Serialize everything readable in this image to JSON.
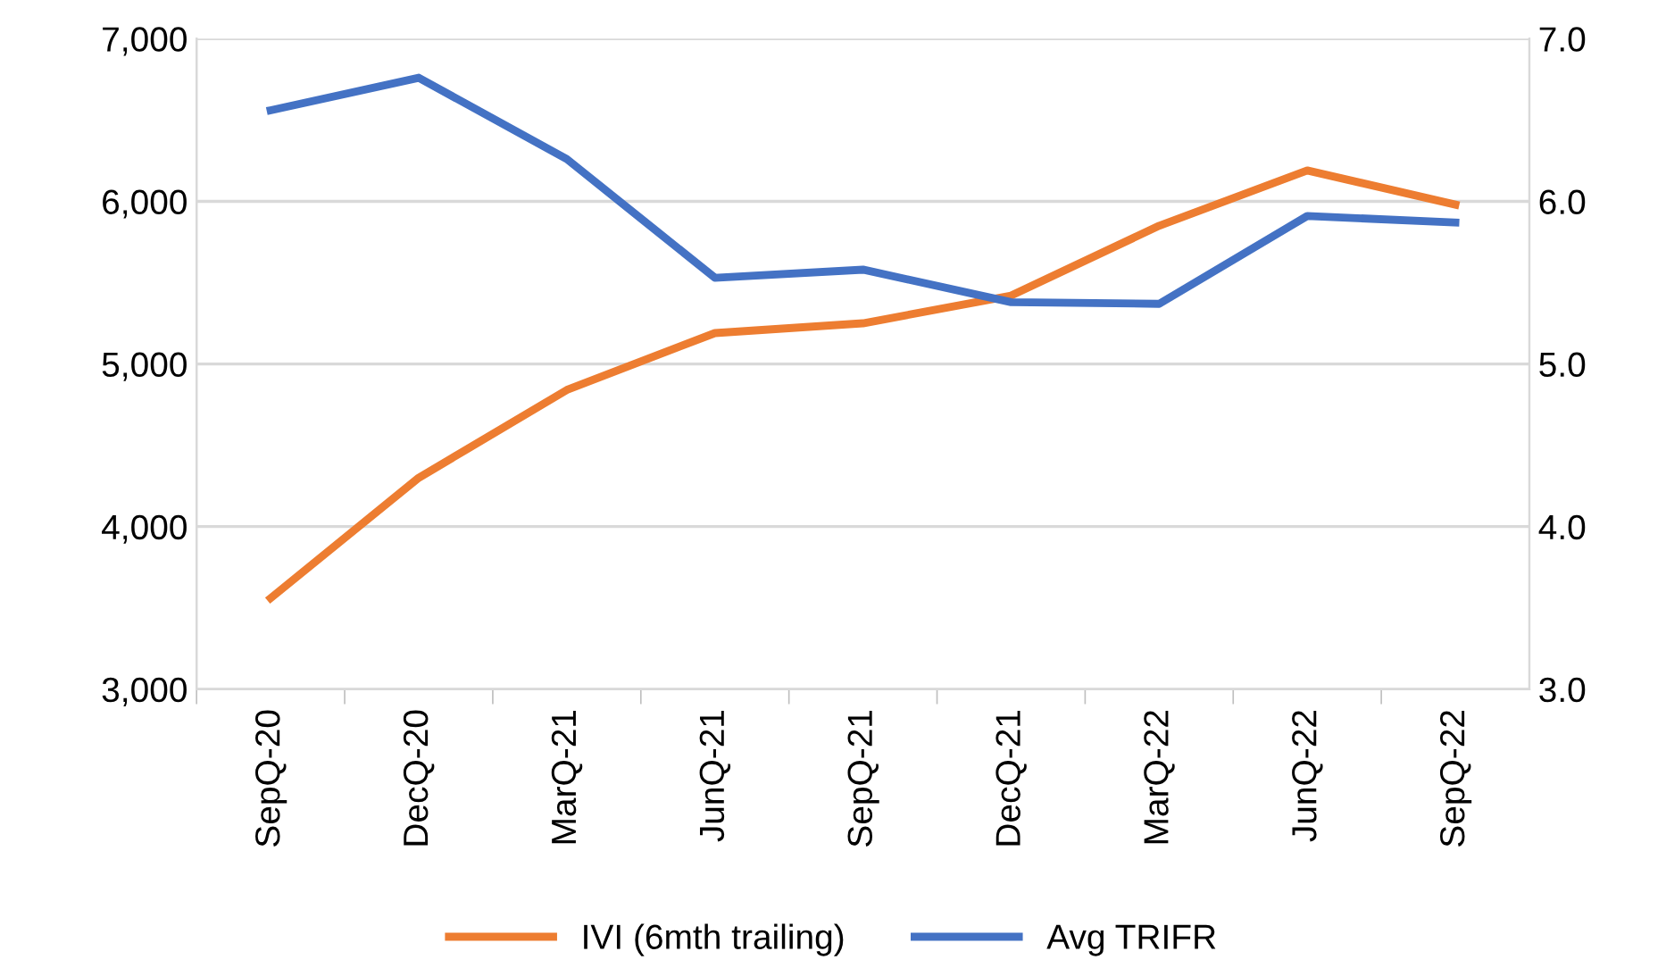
{
  "chart_data": {
    "type": "line",
    "categories": [
      "SepQ-20",
      "DecQ-20",
      "MarQ-21",
      "JunQ-21",
      "SepQ-21",
      "DecQ-21",
      "MarQ-22",
      "JunQ-22",
      "SepQ-22"
    ],
    "series": [
      {
        "name": "IVI (6mth trailing)",
        "color": "#ed7d31",
        "values": [
          3560,
          4300,
          4840,
          5190,
          5250,
          5420,
          5850,
          6190,
          5980
        ]
      },
      {
        "name": "Avg TRIFR",
        "color": "#4472c4",
        "axis": "y2",
        "values": [
          6.56,
          6.76,
          6.26,
          5.53,
          5.58,
          5.38,
          5.37,
          5.91,
          5.87
        ]
      }
    ],
    "ylim": [
      3000,
      7000
    ],
    "yticks": [
      {
        "value": 3000,
        "label": "3,000"
      },
      {
        "value": 4000,
        "label": "4,000"
      },
      {
        "value": 5000,
        "label": "5,000"
      },
      {
        "value": 6000,
        "label": "6,000"
      },
      {
        "value": 7000,
        "label": "7,000"
      }
    ],
    "y2lim": [
      3.0,
      7.0
    ],
    "y2ticks": [
      {
        "value": 3.0,
        "label": "3.0"
      },
      {
        "value": 4.0,
        "label": "4.0"
      },
      {
        "value": 5.0,
        "label": "5.0"
      },
      {
        "value": 6.0,
        "label": "6.0"
      },
      {
        "value": 7.0,
        "label": "7.0"
      }
    ],
    "grid": "y",
    "legend": "bottom",
    "marker": "none",
    "line_style": "solid"
  }
}
